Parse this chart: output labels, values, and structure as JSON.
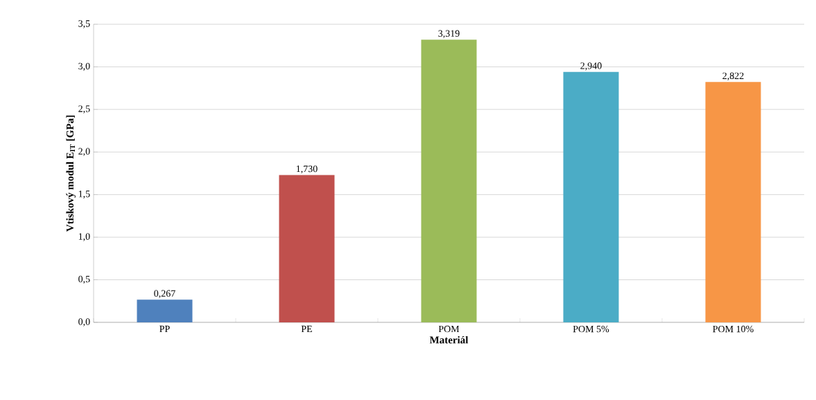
{
  "chart_data": {
    "type": "bar",
    "xlabel": "Materiál",
    "ylabel": "**Vtiskový modul E$_{IT}$ [GPa]**",
    "categories": [
      "PP",
      "PE",
      "POM",
      "POM 5%",
      "POM 10%"
    ],
    "values": [
      0.267,
      1.73,
      3.319,
      2.94,
      2.822
    ],
    "colors": [
      "#4f81bd",
      "#c0504d",
      "#9bbb59",
      "#4bacc6",
      "#f79646"
    ],
    "value_labels": [
      "0,267",
      "1,730",
      "3,319",
      "2,940",
      "2,822"
    ],
    "ylim": [
      0,
      3.5
    ],
    "yticks": [
      {
        "value": 0,
        "label": "0,0"
      },
      {
        "value": 0.5,
        "label": "0,5"
      },
      {
        "value": 1,
        "label": "1,0"
      },
      {
        "value": 1.5,
        "label": "1,5"
      },
      {
        "value": 2,
        "label": "2,0"
      },
      {
        "value": 2.5,
        "label": "2,5"
      },
      {
        "value": 3,
        "label": "3,0"
      },
      {
        "value": 3.5,
        "label": "3,5"
      }
    ],
    "grid": "y"
  }
}
